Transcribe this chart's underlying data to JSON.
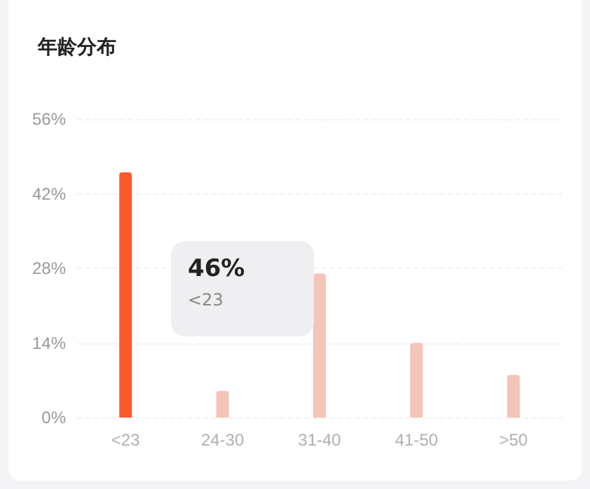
{
  "chart_data": {
    "type": "bar",
    "title": "年龄分布",
    "categories": [
      "<23",
      "24-30",
      "31-40",
      "41-50",
      ">50"
    ],
    "values": [
      46,
      5,
      27,
      14,
      8
    ],
    "colors": [
      "#f95a2c",
      "#f3c4b8",
      "#f3c4b8",
      "#f3c4b8",
      "#f3c4b8"
    ],
    "ylim": [
      0,
      56
    ],
    "yticks": [
      {
        "value": 0,
        "label": "0%"
      },
      {
        "value": 14,
        "label": "14%"
      },
      {
        "value": 28,
        "label": "28%"
      },
      {
        "value": 42,
        "label": "42%"
      },
      {
        "value": 56,
        "label": "56%"
      }
    ],
    "grid": "y",
    "annotations": [
      "46%",
      "<23"
    ]
  }
}
